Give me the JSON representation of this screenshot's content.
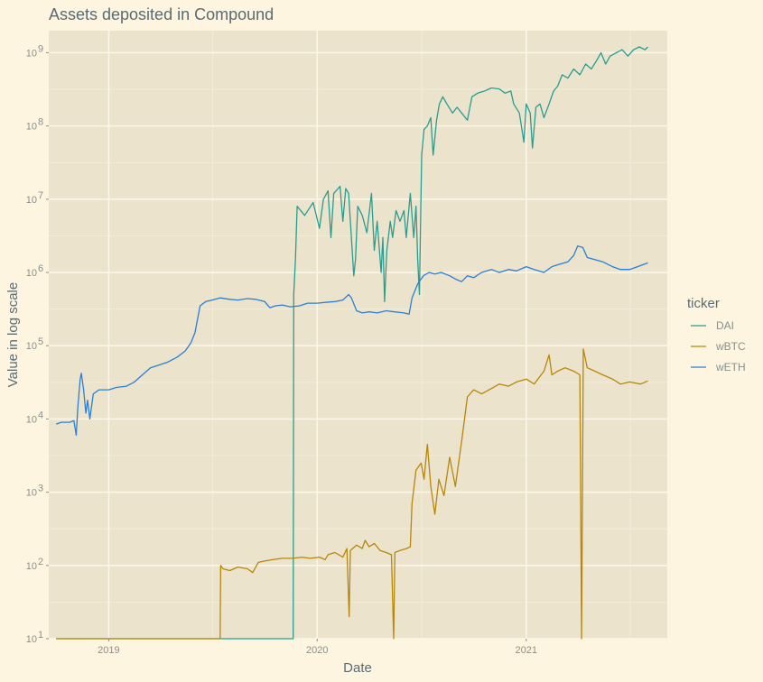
{
  "chart_data": {
    "type": "line",
    "title": "Assets deposited in Compound",
    "xlabel": "Date",
    "ylabel": "Value in log scale",
    "x_scale": "date",
    "y_scale": "log10",
    "xlim": [
      "2018-09-18",
      "2021-09-05"
    ],
    "ylim": [
      10,
      2000000000
    ],
    "x_ticks": [
      {
        "date": "2019-01-01",
        "label": "2019"
      },
      {
        "date": "2020-01-01",
        "label": "2020"
      },
      {
        "date": "2021-01-01",
        "label": "2021"
      }
    ],
    "y_ticks": [
      {
        "value": 10,
        "base": "10",
        "exp": "1"
      },
      {
        "value": 100,
        "base": "10",
        "exp": "2"
      },
      {
        "value": 1000,
        "base": "10",
        "exp": "3"
      },
      {
        "value": 10000,
        "base": "10",
        "exp": "4"
      },
      {
        "value": 100000,
        "base": "10",
        "exp": "5"
      },
      {
        "value": 1000000,
        "base": "10",
        "exp": "6"
      },
      {
        "value": 10000000,
        "base": "10",
        "exp": "7"
      },
      {
        "value": 100000000,
        "base": "10",
        "exp": "8"
      },
      {
        "value": 1000000000,
        "base": "10",
        "exp": "9"
      }
    ],
    "grid": true,
    "legend": {
      "title": "ticker",
      "position": "right"
    },
    "series": [
      {
        "name": "DAI",
        "color": "#2a9d8f",
        "points": [
          [
            "2018-10-01",
            10
          ],
          [
            "2019-11-20",
            10
          ],
          [
            "2019-11-21",
            500000
          ],
          [
            "2019-11-24",
            1500000
          ],
          [
            "2019-11-27",
            8000000
          ],
          [
            "2019-12-10",
            6000000
          ],
          [
            "2019-12-25",
            9000000
          ],
          [
            "2020-01-05",
            4000000
          ],
          [
            "2020-01-12",
            10000000
          ],
          [
            "2020-01-20",
            13000000
          ],
          [
            "2020-01-25",
            3000000
          ],
          [
            "2020-01-30",
            12000000
          ],
          [
            "2020-02-10",
            15000000
          ],
          [
            "2020-02-15",
            5000000
          ],
          [
            "2020-02-20",
            14000000
          ],
          [
            "2020-02-25",
            12000000
          ],
          [
            "2020-03-05",
            900000
          ],
          [
            "2020-03-08",
            1500000
          ],
          [
            "2020-03-12",
            8000000
          ],
          [
            "2020-03-20",
            6000000
          ],
          [
            "2020-03-28",
            3500000
          ],
          [
            "2020-04-05",
            12000000
          ],
          [
            "2020-04-10",
            2000000
          ],
          [
            "2020-04-15",
            5000000
          ],
          [
            "2020-04-22",
            1000000
          ],
          [
            "2020-04-25",
            3000000
          ],
          [
            "2020-04-28",
            400000
          ],
          [
            "2020-05-02",
            2000000
          ],
          [
            "2020-05-08",
            5000000
          ],
          [
            "2020-05-12",
            3000000
          ],
          [
            "2020-05-18",
            7000000
          ],
          [
            "2020-05-25",
            5000000
          ],
          [
            "2020-06-01",
            7000000
          ],
          [
            "2020-06-05",
            3000000
          ],
          [
            "2020-06-12",
            12000000
          ],
          [
            "2020-06-18",
            3000000
          ],
          [
            "2020-06-22",
            8000000
          ],
          [
            "2020-06-25",
            1500000
          ],
          [
            "2020-06-28",
            500000
          ],
          [
            "2020-07-02",
            40000000
          ],
          [
            "2020-07-06",
            90000000
          ],
          [
            "2020-07-12",
            100000000
          ],
          [
            "2020-07-18",
            130000000
          ],
          [
            "2020-07-22",
            40000000
          ],
          [
            "2020-07-28",
            120000000
          ],
          [
            "2020-08-02",
            200000000
          ],
          [
            "2020-08-08",
            250000000
          ],
          [
            "2020-08-15",
            200000000
          ],
          [
            "2020-08-25",
            150000000
          ],
          [
            "2020-09-02",
            180000000
          ],
          [
            "2020-09-10",
            150000000
          ],
          [
            "2020-09-20",
            120000000
          ],
          [
            "2020-09-28",
            250000000
          ],
          [
            "2020-10-08",
            280000000
          ],
          [
            "2020-10-20",
            300000000
          ],
          [
            "2020-11-01",
            330000000
          ],
          [
            "2020-11-15",
            320000000
          ],
          [
            "2020-11-25",
            280000000
          ],
          [
            "2020-12-05",
            300000000
          ],
          [
            "2020-12-10",
            200000000
          ],
          [
            "2020-12-20",
            150000000
          ],
          [
            "2020-12-28",
            60000000
          ],
          [
            "2021-01-01",
            200000000
          ],
          [
            "2021-01-08",
            150000000
          ],
          [
            "2021-01-12",
            50000000
          ],
          [
            "2021-01-18",
            180000000
          ],
          [
            "2021-01-25",
            200000000
          ],
          [
            "2021-02-01",
            130000000
          ],
          [
            "2021-02-10",
            200000000
          ],
          [
            "2021-02-18",
            300000000
          ],
          [
            "2021-02-25",
            350000000
          ],
          [
            "2021-03-05",
            500000000
          ],
          [
            "2021-03-15",
            450000000
          ],
          [
            "2021-03-25",
            600000000
          ],
          [
            "2021-04-05",
            500000000
          ],
          [
            "2021-04-15",
            700000000
          ],
          [
            "2021-04-25",
            600000000
          ],
          [
            "2021-05-05",
            800000000
          ],
          [
            "2021-05-12",
            1000000000
          ],
          [
            "2021-05-20",
            700000000
          ],
          [
            "2021-05-28",
            900000000
          ],
          [
            "2021-06-08",
            1000000000
          ],
          [
            "2021-06-18",
            1100000000
          ],
          [
            "2021-06-28",
            900000000
          ],
          [
            "2021-07-08",
            1100000000
          ],
          [
            "2021-07-18",
            1200000000
          ],
          [
            "2021-07-28",
            1100000000
          ],
          [
            "2021-08-02",
            1200000000
          ]
        ]
      },
      {
        "name": "wBTC",
        "color": "#b8860b",
        "points": [
          [
            "2018-10-01",
            10
          ],
          [
            "2019-07-15",
            10
          ],
          [
            "2019-07-16",
            100
          ],
          [
            "2019-07-20",
            90
          ],
          [
            "2019-08-01",
            85
          ],
          [
            "2019-08-15",
            95
          ],
          [
            "2019-09-01",
            90
          ],
          [
            "2019-09-10",
            80
          ],
          [
            "2019-09-20",
            110
          ],
          [
            "2019-10-01",
            115
          ],
          [
            "2019-10-15",
            120
          ],
          [
            "2019-11-01",
            125
          ],
          [
            "2019-11-20",
            125
          ],
          [
            "2019-12-05",
            130
          ],
          [
            "2019-12-20",
            125
          ],
          [
            "2020-01-05",
            130
          ],
          [
            "2020-01-15",
            120
          ],
          [
            "2020-01-20",
            140
          ],
          [
            "2020-02-01",
            150
          ],
          [
            "2020-02-15",
            130
          ],
          [
            "2020-02-22",
            170
          ],
          [
            "2020-02-26",
            20
          ],
          [
            "2020-02-28",
            160
          ],
          [
            "2020-03-10",
            190
          ],
          [
            "2020-03-20",
            170
          ],
          [
            "2020-03-25",
            220
          ],
          [
            "2020-04-01",
            180
          ],
          [
            "2020-04-10",
            200
          ],
          [
            "2020-04-20",
            160
          ],
          [
            "2020-05-01",
            150
          ],
          [
            "2020-05-10",
            140
          ],
          [
            "2020-05-14",
            10
          ],
          [
            "2020-05-16",
            150
          ],
          [
            "2020-05-25",
            160
          ],
          [
            "2020-06-05",
            170
          ],
          [
            "2020-06-12",
            180
          ],
          [
            "2020-06-15",
            700
          ],
          [
            "2020-06-22",
            2000
          ],
          [
            "2020-07-01",
            2500
          ],
          [
            "2020-07-06",
            1500
          ],
          [
            "2020-07-12",
            4500
          ],
          [
            "2020-07-18",
            1200
          ],
          [
            "2020-07-25",
            500
          ],
          [
            "2020-08-01",
            1500
          ],
          [
            "2020-08-10",
            900
          ],
          [
            "2020-08-20",
            3000
          ],
          [
            "2020-08-30",
            1200
          ],
          [
            "2020-09-10",
            5000
          ],
          [
            "2020-09-20",
            20000
          ],
          [
            "2020-10-01",
            25000
          ],
          [
            "2020-10-15",
            22000
          ],
          [
            "2020-11-01",
            26000
          ],
          [
            "2020-11-15",
            30000
          ],
          [
            "2020-12-01",
            28000
          ],
          [
            "2020-12-15",
            32000
          ],
          [
            "2021-01-01",
            35000
          ],
          [
            "2021-01-15",
            30000
          ],
          [
            "2021-02-01",
            45000
          ],
          [
            "2021-02-10",
            75000
          ],
          [
            "2021-02-15",
            40000
          ],
          [
            "2021-02-25",
            45000
          ],
          [
            "2021-03-10",
            50000
          ],
          [
            "2021-03-25",
            45000
          ],
          [
            "2021-04-05",
            40000
          ],
          [
            "2021-04-08",
            10
          ],
          [
            "2021-04-11",
            90000
          ],
          [
            "2021-04-18",
            50000
          ],
          [
            "2021-05-01",
            45000
          ],
          [
            "2021-05-15",
            40000
          ],
          [
            "2021-06-01",
            35000
          ],
          [
            "2021-06-15",
            30000
          ],
          [
            "2021-07-01",
            32000
          ],
          [
            "2021-07-20",
            30000
          ],
          [
            "2021-08-02",
            33000
          ]
        ]
      },
      {
        "name": "wETH",
        "color": "#2c7fd6",
        "points": [
          [
            "2018-10-01",
            8500
          ],
          [
            "2018-10-10",
            9000
          ],
          [
            "2018-10-25",
            9000
          ],
          [
            "2018-11-01",
            9500
          ],
          [
            "2018-11-05",
            6000
          ],
          [
            "2018-11-08",
            15000
          ],
          [
            "2018-11-12",
            35000
          ],
          [
            "2018-11-14",
            42000
          ],
          [
            "2018-11-18",
            25000
          ],
          [
            "2018-11-22",
            12000
          ],
          [
            "2018-11-25",
            18000
          ],
          [
            "2018-11-29",
            10000
          ],
          [
            "2018-12-05",
            22000
          ],
          [
            "2018-12-15",
            25000
          ],
          [
            "2019-01-01",
            25000
          ],
          [
            "2019-01-15",
            27000
          ],
          [
            "2019-02-01",
            28000
          ],
          [
            "2019-02-15",
            32000
          ],
          [
            "2019-03-01",
            40000
          ],
          [
            "2019-03-15",
            50000
          ],
          [
            "2019-04-01",
            55000
          ],
          [
            "2019-04-15",
            60000
          ],
          [
            "2019-05-01",
            70000
          ],
          [
            "2019-05-15",
            85000
          ],
          [
            "2019-05-25",
            110000
          ],
          [
            "2019-06-01",
            150000
          ],
          [
            "2019-06-10",
            350000
          ],
          [
            "2019-06-20",
            400000
          ],
          [
            "2019-07-01",
            420000
          ],
          [
            "2019-07-15",
            450000
          ],
          [
            "2019-08-01",
            430000
          ],
          [
            "2019-08-15",
            420000
          ],
          [
            "2019-09-01",
            440000
          ],
          [
            "2019-09-15",
            430000
          ],
          [
            "2019-10-01",
            400000
          ],
          [
            "2019-10-10",
            330000
          ],
          [
            "2019-10-20",
            350000
          ],
          [
            "2019-11-01",
            360000
          ],
          [
            "2019-11-15",
            340000
          ],
          [
            "2019-12-01",
            350000
          ],
          [
            "2019-12-15",
            380000
          ],
          [
            "2020-01-01",
            380000
          ],
          [
            "2020-01-15",
            390000
          ],
          [
            "2020-02-01",
            400000
          ],
          [
            "2020-02-15",
            420000
          ],
          [
            "2020-02-25",
            500000
          ],
          [
            "2020-03-01",
            450000
          ],
          [
            "2020-03-10",
            300000
          ],
          [
            "2020-03-20",
            280000
          ],
          [
            "2020-04-01",
            290000
          ],
          [
            "2020-04-15",
            280000
          ],
          [
            "2020-05-01",
            300000
          ],
          [
            "2020-05-15",
            290000
          ],
          [
            "2020-06-01",
            280000
          ],
          [
            "2020-06-10",
            270000
          ],
          [
            "2020-06-15",
            450000
          ],
          [
            "2020-06-25",
            700000
          ],
          [
            "2020-07-05",
            900000
          ],
          [
            "2020-07-15",
            1000000
          ],
          [
            "2020-07-25",
            950000
          ],
          [
            "2020-08-05",
            1000000
          ],
          [
            "2020-08-20",
            900000
          ],
          [
            "2020-09-01",
            800000
          ],
          [
            "2020-09-10",
            750000
          ],
          [
            "2020-09-20",
            900000
          ],
          [
            "2020-10-01",
            850000
          ],
          [
            "2020-10-15",
            1000000
          ],
          [
            "2020-11-01",
            1100000
          ],
          [
            "2020-11-15",
            1000000
          ],
          [
            "2020-12-01",
            1100000
          ],
          [
            "2020-12-15",
            1050000
          ],
          [
            "2021-01-01",
            1200000
          ],
          [
            "2021-01-15",
            1100000
          ],
          [
            "2021-02-01",
            1000000
          ],
          [
            "2021-02-15",
            1200000
          ],
          [
            "2021-03-01",
            1300000
          ],
          [
            "2021-03-15",
            1400000
          ],
          [
            "2021-03-25",
            1700000
          ],
          [
            "2021-04-01",
            2300000
          ],
          [
            "2021-04-10",
            2200000
          ],
          [
            "2021-04-18",
            1600000
          ],
          [
            "2021-05-01",
            1500000
          ],
          [
            "2021-05-15",
            1400000
          ],
          [
            "2021-06-01",
            1200000
          ],
          [
            "2021-06-15",
            1100000
          ],
          [
            "2021-07-01",
            1100000
          ],
          [
            "2021-07-15",
            1200000
          ],
          [
            "2021-08-02",
            1350000
          ]
        ]
      }
    ]
  }
}
